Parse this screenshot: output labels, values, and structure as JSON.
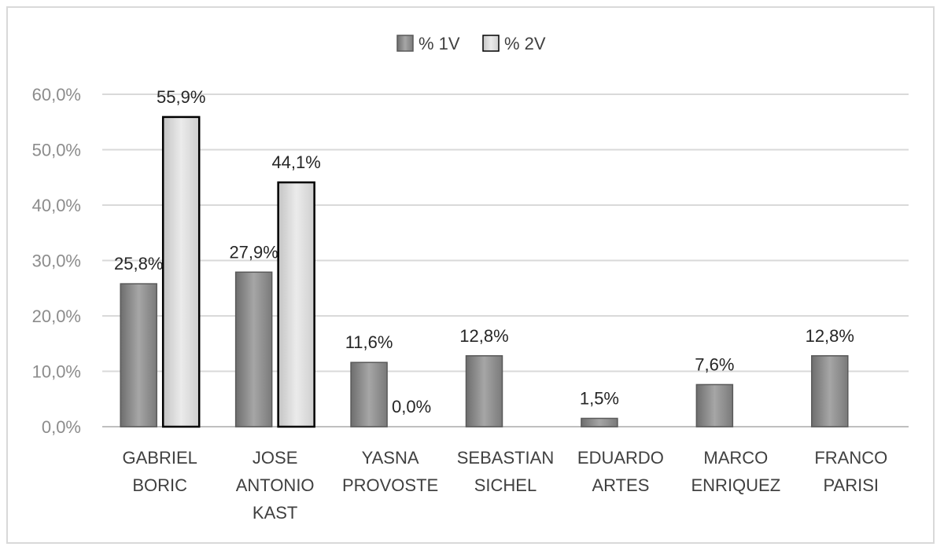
{
  "chart_data": {
    "type": "bar",
    "title": "",
    "xlabel": "",
    "ylabel": "",
    "ylim": [
      0,
      60
    ],
    "grid": true,
    "legend_position": "top-center",
    "y_ticks": [
      "0,0%",
      "10,0%",
      "20,0%",
      "30,0%",
      "40,0%",
      "50,0%",
      "60,0%"
    ],
    "categories": [
      [
        "GABRIEL",
        "BORIC"
      ],
      [
        "JOSE",
        "ANTONIO",
        "KAST"
      ],
      [
        "YASNA",
        "PROVOSTE"
      ],
      [
        "SEBASTIAN",
        "SICHEL"
      ],
      [
        "EDUARDO",
        "ARTES"
      ],
      [
        "MARCO",
        "ENRIQUEZ"
      ],
      [
        "FRANCO",
        "PARISI"
      ]
    ],
    "series": [
      {
        "name": "% 1V",
        "color": "#8c8c8c",
        "values": [
          25.8,
          27.9,
          11.6,
          12.8,
          1.5,
          7.6,
          12.8
        ],
        "labels": [
          "25,8%",
          "27,9%",
          "11,6%",
          "12,8%",
          "1,5%",
          "7,6%",
          "12,8%"
        ]
      },
      {
        "name": "% 2V",
        "color": "#d9d9d9",
        "values": [
          55.9,
          44.1,
          0.0,
          null,
          null,
          null,
          null
        ],
        "labels": [
          "55,9%",
          "44,1%",
          "0,0%",
          null,
          null,
          null,
          null
        ]
      }
    ]
  }
}
